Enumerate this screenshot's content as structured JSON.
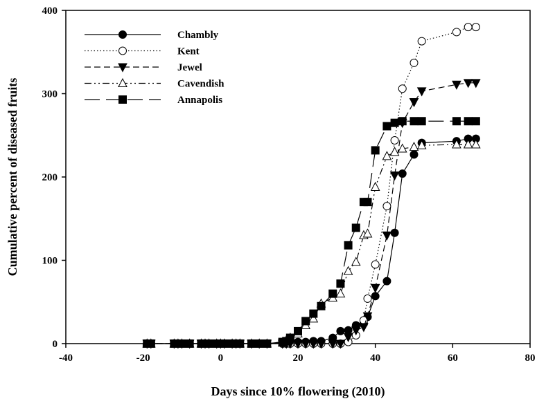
{
  "chart_data": {
    "type": "line",
    "title": "",
    "xlabel": "Days since 10% flowering (2010)",
    "ylabel": "Cumulative percent of diseased fruits",
    "xlim": [
      -40,
      80
    ],
    "ylim": [
      0,
      400
    ],
    "xticks": [
      -40,
      -20,
      0,
      20,
      40,
      60,
      80
    ],
    "yticks": [
      0,
      100,
      200,
      300,
      400
    ],
    "grid": false,
    "legend_position": "top-left",
    "series": [
      {
        "name": "Chambly",
        "marker": "circle-filled",
        "dash": "solid",
        "x": [
          -19,
          -18,
          -12,
          -11,
          -10,
          -8,
          -5,
          -4,
          -3,
          -1,
          0,
          1,
          3,
          4,
          5,
          8,
          10,
          12,
          16,
          17,
          18,
          20,
          22,
          24,
          26,
          29,
          31,
          33,
          35,
          37,
          38,
          40,
          43,
          45,
          47,
          50,
          52,
          61,
          64,
          66
        ],
        "y": [
          0,
          0,
          0,
          0,
          0,
          0,
          0,
          0,
          0,
          0,
          0,
          0,
          0,
          0,
          0,
          0,
          0,
          0,
          2,
          2,
          2,
          2,
          2,
          3,
          3,
          7,
          15,
          16,
          22,
          24,
          32,
          57,
          75,
          133,
          204,
          227,
          241,
          243,
          246,
          246
        ]
      },
      {
        "name": "Kent",
        "marker": "circle-open",
        "dash": "dotted",
        "x": [
          -19,
          -18,
          -12,
          -11,
          -10,
          -8,
          -5,
          -4,
          -3,
          -1,
          0,
          1,
          3,
          4,
          5,
          8,
          10,
          12,
          16,
          17,
          18,
          20,
          22,
          24,
          26,
          29,
          31,
          33,
          35,
          37,
          38,
          40,
          43,
          45,
          47,
          50,
          52,
          61,
          64,
          66
        ],
        "y": [
          0,
          0,
          0,
          0,
          0,
          0,
          0,
          0,
          0,
          0,
          0,
          0,
          0,
          0,
          0,
          0,
          0,
          0,
          0,
          0,
          0,
          0,
          0,
          0,
          0,
          0,
          0,
          2,
          10,
          28,
          54,
          95,
          165,
          244,
          306,
          337,
          363,
          374,
          380,
          380
        ]
      },
      {
        "name": "Jewel",
        "marker": "triangle-down-filled",
        "dash": "dashed",
        "x": [
          -19,
          -18,
          -12,
          -11,
          -10,
          -8,
          -5,
          -4,
          -3,
          -1,
          0,
          1,
          3,
          4,
          5,
          8,
          10,
          12,
          16,
          17,
          18,
          20,
          22,
          24,
          26,
          29,
          31,
          33,
          35,
          37,
          38,
          40,
          43,
          45,
          47,
          50,
          52,
          61,
          64,
          66
        ],
        "y": [
          0,
          0,
          0,
          0,
          0,
          0,
          0,
          0,
          0,
          0,
          0,
          0,
          0,
          0,
          0,
          0,
          0,
          0,
          0,
          0,
          0,
          0,
          0,
          0,
          0,
          0,
          0,
          8,
          16,
          20,
          33,
          67,
          130,
          202,
          265,
          290,
          303,
          311,
          313,
          313
        ]
      },
      {
        "name": "Cavendish",
        "marker": "triangle-up-open",
        "dash": "dash-dot-dot",
        "x": [
          -19,
          -18,
          -12,
          -11,
          -10,
          -8,
          -5,
          -4,
          -3,
          -1,
          0,
          1,
          3,
          4,
          5,
          8,
          10,
          12,
          16,
          17,
          18,
          20,
          22,
          24,
          26,
          29,
          31,
          33,
          35,
          37,
          38,
          40,
          43,
          45,
          47,
          50,
          52,
          61,
          64,
          66
        ],
        "y": [
          0,
          0,
          0,
          0,
          0,
          0,
          0,
          0,
          0,
          0,
          0,
          0,
          0,
          0,
          0,
          0,
          0,
          0,
          1,
          4,
          7,
          12,
          22,
          30,
          48,
          55,
          60,
          87,
          98,
          130,
          132,
          188,
          225,
          230,
          234,
          236,
          238,
          239,
          239,
          239
        ]
      },
      {
        "name": "Annapolis",
        "marker": "square-filled",
        "dash": "long-dash",
        "x": [
          -19,
          -18,
          -12,
          -11,
          -10,
          -8,
          -5,
          -4,
          -3,
          -1,
          0,
          1,
          3,
          4,
          5,
          8,
          10,
          12,
          16,
          17,
          18,
          20,
          22,
          24,
          26,
          29,
          31,
          33,
          35,
          37,
          38,
          40,
          43,
          45,
          47,
          50,
          52,
          61,
          64,
          66
        ],
        "y": [
          0,
          0,
          0,
          0,
          0,
          0,
          0,
          0,
          0,
          0,
          0,
          0,
          0,
          0,
          0,
          0,
          0,
          0,
          2,
          3,
          7,
          15,
          27,
          36,
          45,
          60,
          72,
          118,
          139,
          170,
          170,
          232,
          261,
          265,
          267,
          267,
          267,
          267,
          267,
          267
        ]
      }
    ]
  }
}
